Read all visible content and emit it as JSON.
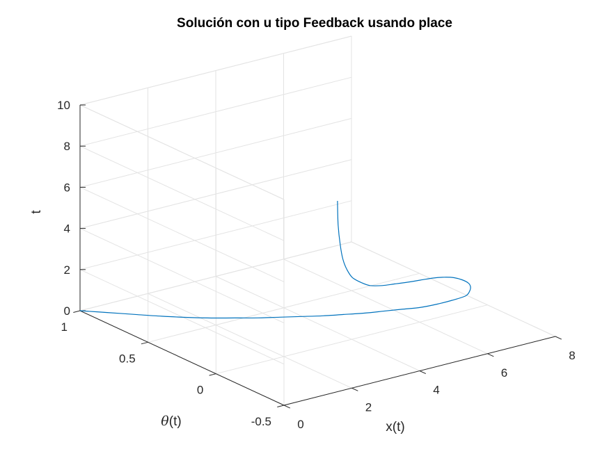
{
  "chart_data": {
    "type": "line",
    "projection": "3d",
    "title": "Solución con u tipo Feedback usando place",
    "xlabel": "x(t)",
    "ylabel_symbol": "θ",
    "ylabel_suffix": "(t)",
    "zlabel": "t",
    "xlim": [
      0,
      8
    ],
    "ylim": [
      -0.5,
      1
    ],
    "zlim": [
      0,
      10
    ],
    "x_ticks": [
      "0",
      "2",
      "4",
      "6",
      "8"
    ],
    "y_ticks": [
      "-0.5",
      "0",
      "0.5",
      "1"
    ],
    "z_ticks": [
      "0",
      "2",
      "4",
      "6",
      "8",
      "10"
    ],
    "grid": true,
    "series": [
      {
        "color": "#0072bd",
        "x": [
          0,
          0.4,
          0.8,
          1.2,
          1.6,
          2.0,
          2.4,
          2.8,
          3.2,
          3.6,
          4.0,
          4.4,
          4.8,
          5.2,
          5.6,
          6.0,
          6.4,
          6.8,
          7.2,
          7.4,
          7.5,
          7.52,
          7.45,
          7.3,
          7.05,
          6.7,
          6.3,
          5.9,
          5.5,
          5.1,
          4.7,
          4.4,
          4.1,
          3.9,
          3.74,
          3.62,
          3.54,
          3.5
        ],
        "y": [
          1.0,
          0.9,
          0.8,
          0.7,
          0.61,
          0.53,
          0.46,
          0.39,
          0.33,
          0.27,
          0.21,
          0.16,
          0.11,
          0.07,
          0.03,
          -0.01,
          -0.03,
          -0.04,
          -0.04,
          -0.02,
          0.0,
          0.02,
          0.05,
          0.07,
          0.08,
          0.08,
          0.07,
          0.06,
          0.055,
          0.05,
          0.04,
          0.03,
          0.02,
          0.01,
          0.0,
          -0.01,
          -0.015,
          -0.02
        ],
        "z": [
          0,
          0.05,
          0.1,
          0.15,
          0.2,
          0.25,
          0.3,
          0.35,
          0.4,
          0.45,
          0.5,
          0.55,
          0.6,
          0.65,
          0.7,
          0.75,
          0.8,
          0.85,
          0.9,
          1.0,
          1.1,
          1.2,
          1.3,
          1.4,
          1.5,
          1.6,
          1.7,
          1.8,
          1.9,
          2.0,
          2.2,
          2.5,
          2.9,
          3.4,
          4.0,
          4.8,
          5.8,
          7.0
        ]
      }
    ]
  }
}
